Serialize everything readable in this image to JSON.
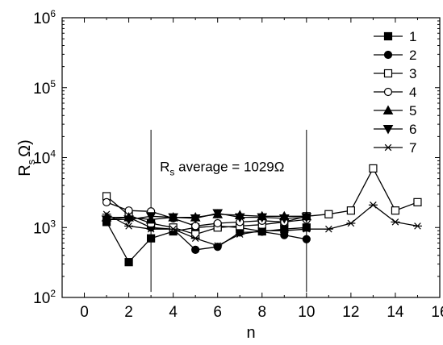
{
  "chart_data": {
    "type": "line",
    "xlabel": "n",
    "ylabel": "R",
    "ylabel_sub": "s",
    "ylabel_unit": "Ω)",
    "xlim": [
      -1,
      16
    ],
    "ylim": [
      100,
      1000000
    ],
    "yscale": "log",
    "grid": false,
    "legend_position": "top-right",
    "x_ticks": [
      0,
      2,
      4,
      6,
      8,
      10,
      12,
      14,
      16
    ],
    "x_tick_labels": [
      "0",
      "2",
      "4",
      "6",
      "8",
      "10",
      "12",
      "14",
      "16"
    ],
    "y_ticks": [
      100,
      1000,
      10000,
      100000,
      1000000
    ],
    "y_tick_labels": [
      {
        "base": "10",
        "exp": "2"
      },
      {
        "base": "10",
        "exp": "3"
      },
      {
        "base": "10",
        "exp": "4"
      },
      {
        "base": "10",
        "exp": "5"
      },
      {
        "base": "10",
        "exp": "6"
      }
    ],
    "vlines": [
      3,
      10
    ],
    "annotation": {
      "prefix": "R",
      "sub": "s",
      "text": " average = 1029Ω",
      "x": 3.4,
      "y": 7500
    },
    "series": [
      {
        "name": "1",
        "marker": "square-filled",
        "x": [
          1,
          2,
          3,
          4,
          5,
          6,
          7,
          8,
          9,
          10
        ],
        "y": [
          1200,
          320,
          700,
          880,
          1000,
          1050,
          1000,
          880,
          950,
          1000
        ]
      },
      {
        "name": "2",
        "marker": "circle-filled",
        "x": [
          1,
          2,
          3,
          4,
          5,
          6,
          7,
          8,
          9,
          10
        ],
        "y": [
          1300,
          1400,
          1000,
          950,
          480,
          530,
          850,
          870,
          780,
          680
        ]
      },
      {
        "name": "3",
        "marker": "square-open",
        "x": [
          1,
          2,
          3,
          4,
          5,
          6,
          7,
          8,
          9,
          10,
          11,
          12,
          13,
          14,
          15
        ],
        "y": [
          2800,
          1500,
          1150,
          1000,
          800,
          1000,
          1050,
          1100,
          1200,
          1450,
          1550,
          1750,
          7000,
          1750,
          2300
        ]
      },
      {
        "name": "4",
        "marker": "circle-open",
        "x": [
          1,
          2,
          3,
          4,
          5,
          6,
          7,
          8,
          9,
          10
        ],
        "y": [
          2300,
          1750,
          1700,
          1350,
          1050,
          1150,
          1200,
          1250,
          1200,
          1300
        ]
      },
      {
        "name": "5",
        "marker": "triangle-up-filled",
        "x": [
          1,
          2,
          3,
          4,
          5,
          6,
          7,
          8,
          9,
          10
        ],
        "y": [
          1400,
          1400,
          1300,
          1400,
          1400,
          1550,
          1500,
          1450,
          1450,
          1450
        ]
      },
      {
        "name": "6",
        "marker": "triangle-down-filled",
        "x": [
          1,
          2,
          3,
          4,
          5,
          6,
          7,
          8,
          9,
          10
        ],
        "y": [
          1300,
          1300,
          1450,
          1400,
          1350,
          1600,
          1400,
          1400,
          1350,
          1400
        ]
      },
      {
        "name": "7",
        "marker": "asterisk",
        "x": [
          1,
          2,
          3,
          4,
          5,
          6,
          7,
          8,
          9,
          10,
          11,
          12,
          13,
          14,
          15
        ],
        "y": [
          1550,
          1050,
          950,
          950,
          700,
          550,
          800,
          900,
          900,
          950,
          950,
          1150,
          2100,
          1200,
          1050
        ]
      }
    ]
  }
}
